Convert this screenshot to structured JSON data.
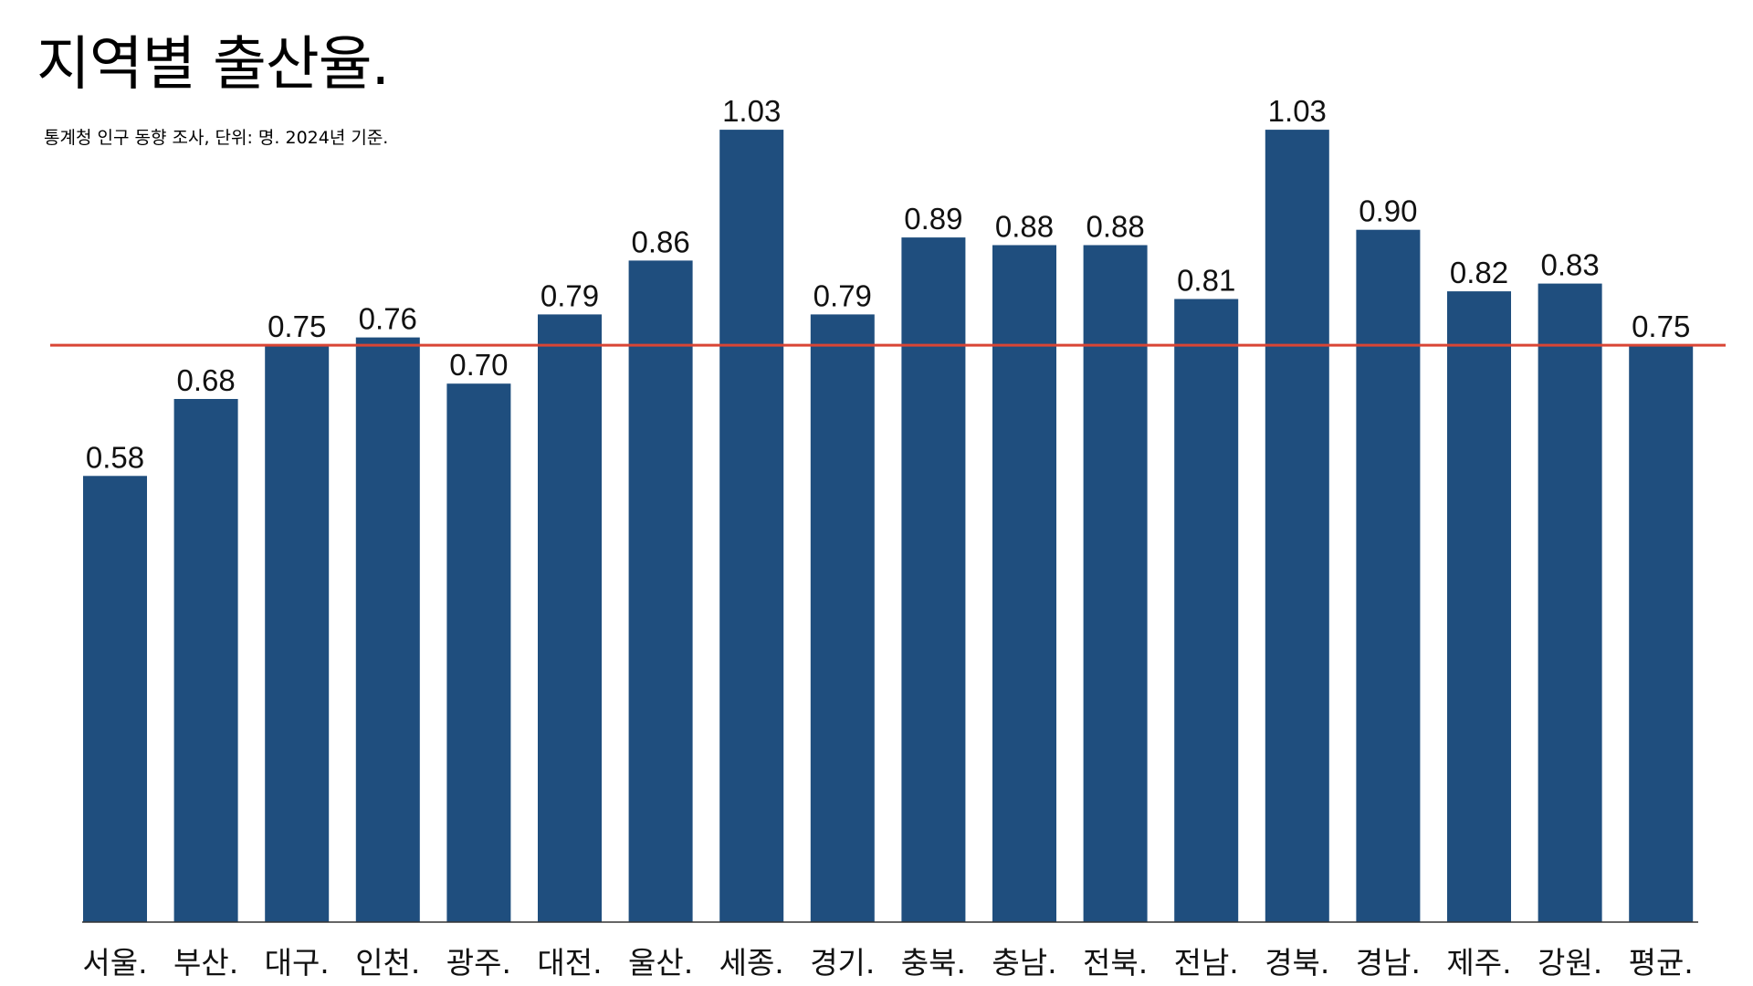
{
  "title": "지역별 출산율.",
  "subtitle": "통계청 인구 동향 조사, 단위: 명. 2024년 기준.",
  "colors": {
    "bar": "#1f4e7e",
    "reference_line": "#d94535",
    "axis": "#333333"
  },
  "chart_data": {
    "type": "bar",
    "title": "지역별 출산율.",
    "subtitle": "통계청 인구 동향 조사, 단위: 명. 2024년 기준.",
    "categories": [
      "서울.",
      "부산.",
      "대구.",
      "인천.",
      "광주.",
      "대전.",
      "울산.",
      "세종.",
      "경기.",
      "충북.",
      "충남.",
      "전북.",
      "전남.",
      "경북.",
      "경남.",
      "제주.",
      "강원.",
      "평균."
    ],
    "values": [
      0.58,
      0.68,
      0.75,
      0.76,
      0.7,
      0.79,
      0.86,
      1.03,
      0.79,
      0.89,
      0.88,
      0.88,
      0.81,
      1.03,
      0.9,
      0.82,
      0.83,
      0.75
    ],
    "value_labels": [
      "0.58",
      "0.68",
      "0.75",
      "0.76",
      "0.70",
      "0.79",
      "0.86",
      "1.03",
      "0.79",
      "0.89",
      "0.88",
      "0.88",
      "0.81",
      "1.03",
      "0.90",
      "0.82",
      "0.83",
      "0.75"
    ],
    "reference_line": {
      "value": 0.75,
      "color": "#d94535"
    },
    "xlabel": "",
    "ylabel": "",
    "ylim": [
      0,
      1.08
    ],
    "grid": false,
    "legend": "none"
  }
}
